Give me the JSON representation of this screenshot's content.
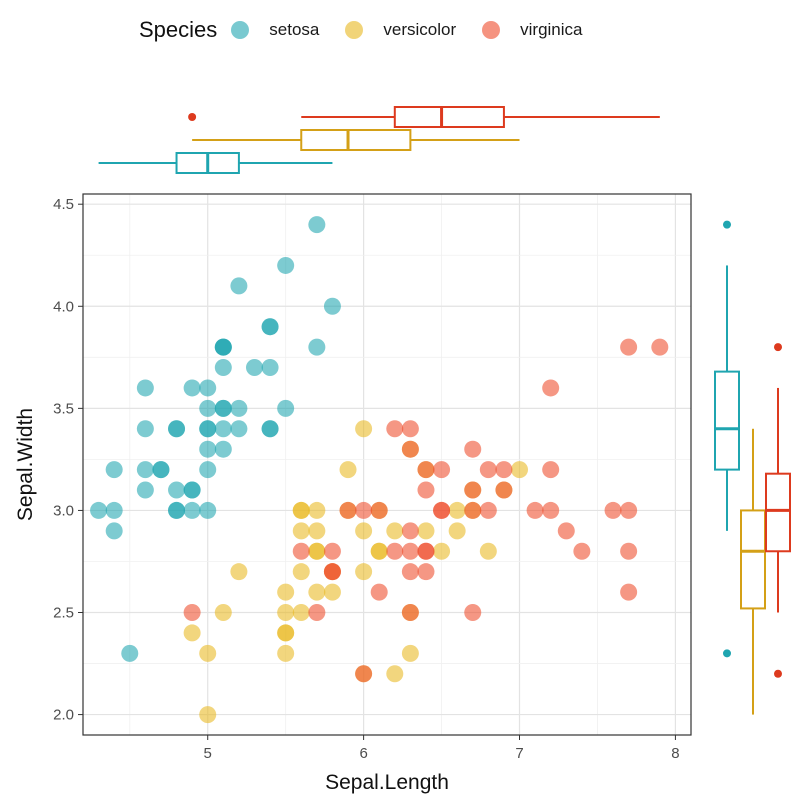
{
  "legend": {
    "title": "Species",
    "items": [
      {
        "label": "setosa",
        "color": "#1FA5B0"
      },
      {
        "label": "versicolor",
        "color": "#E8B820"
      },
      {
        "label": "virginica",
        "color": "#EE4B2B"
      }
    ]
  },
  "chart_data": {
    "type": "scatter",
    "xlabel": "Sepal.Length",
    "ylabel": "Sepal.Width",
    "xlim": [
      4.2,
      8.1
    ],
    "ylim": [
      1.9,
      4.55
    ],
    "xticks": [
      "5",
      "6",
      "7",
      "8"
    ],
    "yticks": [
      "2.0",
      "2.5",
      "3.0",
      "3.5",
      "4.0",
      "4.5"
    ],
    "grid": true,
    "legend_position": "top",
    "series": [
      {
        "name": "setosa",
        "color": "#1FA5B0",
        "points": [
          [
            4.3,
            3.0
          ],
          [
            4.4,
            3.0
          ],
          [
            4.4,
            2.9
          ],
          [
            4.4,
            3.2
          ],
          [
            4.5,
            2.3
          ],
          [
            4.6,
            3.1
          ],
          [
            4.6,
            3.4
          ],
          [
            4.6,
            3.6
          ],
          [
            4.6,
            3.2
          ],
          [
            4.7,
            3.2
          ],
          [
            4.7,
            3.2
          ],
          [
            4.8,
            3.4
          ],
          [
            4.8,
            3.0
          ],
          [
            4.8,
            3.4
          ],
          [
            4.8,
            3.0
          ],
          [
            4.8,
            3.1
          ],
          [
            4.9,
            3.0
          ],
          [
            4.9,
            3.1
          ],
          [
            4.9,
            3.1
          ],
          [
            4.9,
            3.6
          ],
          [
            5.0,
            3.6
          ],
          [
            5.0,
            3.4
          ],
          [
            5.0,
            3.0
          ],
          [
            5.0,
            3.4
          ],
          [
            5.0,
            3.2
          ],
          [
            5.0,
            3.5
          ],
          [
            5.0,
            3.3
          ],
          [
            5.1,
            3.5
          ],
          [
            5.1,
            3.5
          ],
          [
            5.1,
            3.8
          ],
          [
            5.1,
            3.8
          ],
          [
            5.1,
            3.7
          ],
          [
            5.1,
            3.3
          ],
          [
            5.1,
            3.4
          ],
          [
            5.1,
            3.8
          ],
          [
            5.2,
            3.5
          ],
          [
            5.2,
            3.4
          ],
          [
            5.2,
            4.1
          ],
          [
            5.3,
            3.7
          ],
          [
            5.4,
            3.9
          ],
          [
            5.4,
            3.7
          ],
          [
            5.4,
            3.9
          ],
          [
            5.4,
            3.4
          ],
          [
            5.4,
            3.4
          ],
          [
            5.5,
            4.2
          ],
          [
            5.5,
            3.5
          ],
          [
            5.7,
            4.4
          ],
          [
            5.7,
            3.8
          ],
          [
            5.8,
            4.0
          ]
        ]
      },
      {
        "name": "versicolor",
        "color": "#E8B820",
        "points": [
          [
            4.9,
            2.4
          ],
          [
            5.0,
            2.0
          ],
          [
            5.0,
            2.3
          ],
          [
            5.1,
            2.5
          ],
          [
            5.2,
            2.7
          ],
          [
            5.5,
            2.3
          ],
          [
            5.5,
            2.4
          ],
          [
            5.5,
            2.4
          ],
          [
            5.5,
            2.5
          ],
          [
            5.5,
            2.6
          ],
          [
            5.6,
            2.9
          ],
          [
            5.6,
            3.0
          ],
          [
            5.6,
            2.5
          ],
          [
            5.6,
            2.7
          ],
          [
            5.6,
            3.0
          ],
          [
            5.7,
            2.8
          ],
          [
            5.7,
            2.6
          ],
          [
            5.7,
            2.9
          ],
          [
            5.7,
            3.0
          ],
          [
            5.7,
            2.8
          ],
          [
            5.8,
            2.7
          ],
          [
            5.8,
            2.6
          ],
          [
            5.9,
            3.0
          ],
          [
            5.9,
            3.2
          ],
          [
            6.0,
            2.2
          ],
          [
            6.0,
            2.9
          ],
          [
            6.0,
            2.7
          ],
          [
            6.0,
            3.4
          ],
          [
            6.1,
            2.8
          ],
          [
            6.1,
            3.0
          ],
          [
            6.1,
            2.8
          ],
          [
            6.2,
            2.2
          ],
          [
            6.2,
            2.9
          ],
          [
            6.3,
            2.3
          ],
          [
            6.3,
            2.5
          ],
          [
            6.3,
            3.3
          ],
          [
            6.4,
            3.2
          ],
          [
            6.4,
            2.9
          ],
          [
            6.5,
            2.8
          ],
          [
            6.6,
            2.9
          ],
          [
            6.6,
            3.0
          ],
          [
            6.7,
            3.1
          ],
          [
            6.7,
            3.0
          ],
          [
            6.8,
            2.8
          ],
          [
            6.9,
            3.1
          ],
          [
            7.0,
            3.2
          ]
        ]
      },
      {
        "name": "virginica",
        "color": "#EE4B2B",
        "points": [
          [
            4.9,
            2.5
          ],
          [
            5.6,
            2.8
          ],
          [
            5.7,
            2.5
          ],
          [
            5.8,
            2.7
          ],
          [
            5.8,
            2.8
          ],
          [
            5.8,
            2.7
          ],
          [
            5.9,
            3.0
          ],
          [
            6.0,
            2.2
          ],
          [
            6.0,
            3.0
          ],
          [
            6.1,
            3.0
          ],
          [
            6.1,
            2.6
          ],
          [
            6.2,
            2.8
          ],
          [
            6.2,
            3.4
          ],
          [
            6.3,
            3.3
          ],
          [
            6.3,
            2.9
          ],
          [
            6.3,
            2.5
          ],
          [
            6.3,
            2.8
          ],
          [
            6.3,
            2.7
          ],
          [
            6.3,
            3.4
          ],
          [
            6.4,
            2.8
          ],
          [
            6.4,
            3.2
          ],
          [
            6.4,
            2.7
          ],
          [
            6.4,
            3.1
          ],
          [
            6.4,
            2.8
          ],
          [
            6.5,
            3.0
          ],
          [
            6.5,
            3.0
          ],
          [
            6.5,
            3.2
          ],
          [
            6.7,
            2.5
          ],
          [
            6.7,
            3.3
          ],
          [
            6.7,
            3.1
          ],
          [
            6.7,
            3.0
          ],
          [
            6.8,
            3.0
          ],
          [
            6.8,
            3.2
          ],
          [
            6.9,
            3.2
          ],
          [
            6.9,
            3.1
          ],
          [
            7.1,
            3.0
          ],
          [
            7.2,
            3.6
          ],
          [
            7.2,
            3.2
          ],
          [
            7.2,
            3.0
          ],
          [
            7.3,
            2.9
          ],
          [
            7.4,
            2.8
          ],
          [
            7.6,
            3.0
          ],
          [
            7.7,
            3.8
          ],
          [
            7.7,
            2.6
          ],
          [
            7.7,
            2.8
          ],
          [
            7.7,
            3.0
          ],
          [
            7.9,
            3.8
          ]
        ]
      }
    ],
    "top_boxplot": {
      "axis": "Sepal.Length",
      "boxes": [
        {
          "group": "setosa",
          "color": "#1FA5B0",
          "whisker_low": 4.3,
          "q1": 4.8,
          "median": 5.0,
          "q3": 5.2,
          "whisker_high": 5.8,
          "outliers": []
        },
        {
          "group": "versicolor",
          "color": "#D4A017",
          "whisker_low": 4.9,
          "q1": 5.6,
          "median": 5.9,
          "q3": 6.3,
          "whisker_high": 7.0,
          "outliers": []
        },
        {
          "group": "virginica",
          "color": "#DD3A1E",
          "whisker_low": 5.6,
          "q1": 6.2,
          "median": 6.5,
          "q3": 6.9,
          "whisker_high": 7.9,
          "outliers": [
            4.9
          ]
        }
      ]
    },
    "right_boxplot": {
      "axis": "Sepal.Width",
      "boxes": [
        {
          "group": "setosa",
          "color": "#1FA5B0",
          "whisker_low": 2.9,
          "q1": 3.2,
          "median": 3.4,
          "q3": 3.68,
          "whisker_high": 4.2,
          "outliers": [
            4.4,
            2.3
          ]
        },
        {
          "group": "versicolor",
          "color": "#D4A017",
          "whisker_low": 2.0,
          "q1": 2.52,
          "median": 2.8,
          "q3": 3.0,
          "whisker_high": 3.4,
          "outliers": []
        },
        {
          "group": "virginica",
          "color": "#DD3A1E",
          "whisker_low": 2.5,
          "q1": 2.8,
          "median": 3.0,
          "q3": 3.18,
          "whisker_high": 3.6,
          "outliers": [
            3.8,
            2.2
          ]
        }
      ]
    }
  }
}
